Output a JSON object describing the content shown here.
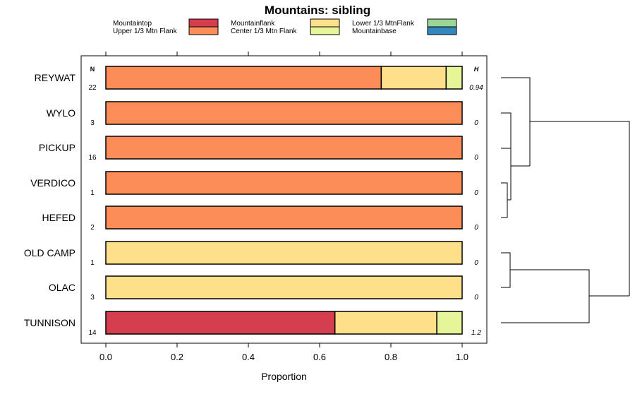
{
  "chart_data": {
    "type": "bar",
    "orientation": "horizontal",
    "stacked": true,
    "title": "Mountains: sibling",
    "xlabel": "Proportion",
    "xlim": [
      0,
      1
    ],
    "xticks": [
      "0.0",
      "0.2",
      "0.4",
      "0.6",
      "0.8",
      "1.0"
    ],
    "n_header": "N",
    "h_header": "H",
    "legend_placement": "top",
    "legend": [
      {
        "name": "Mountaintop",
        "color": "#d53e4f"
      },
      {
        "name": "Upper 1/3 Mtn Flank",
        "color": "#fc8d59"
      },
      {
        "name": "Mountainflank",
        "color": "#fee08b"
      },
      {
        "name": "Center 1/3 Mtn Flank",
        "color": "#e6f598"
      },
      {
        "name": "Lower 1/3 MtnFlank",
        "color": "#99d594"
      },
      {
        "name": "Mountainbase",
        "color": "#3288bd"
      }
    ],
    "categories": [
      "REYWAT",
      "WYLO",
      "PICKUP",
      "VERDICO",
      "HEFED",
      "OLD CAMP",
      "OLAC",
      "TUNNISON"
    ],
    "n": [
      "22",
      "3",
      "16",
      "1",
      "2",
      "1",
      "3",
      "14"
    ],
    "h": [
      "0.94",
      "0",
      "0",
      "0",
      "0",
      "0",
      "0",
      "1.2"
    ],
    "segments": [
      [
        {
          "cls": "Upper 1/3 Mtn Flank",
          "value": 0.773
        },
        {
          "cls": "Mountainflank",
          "value": 0.182
        },
        {
          "cls": "Center 1/3 Mtn Flank",
          "value": 0.045
        }
      ],
      [
        {
          "cls": "Upper 1/3 Mtn Flank",
          "value": 1.0
        }
      ],
      [
        {
          "cls": "Upper 1/3 Mtn Flank",
          "value": 1.0
        }
      ],
      [
        {
          "cls": "Upper 1/3 Mtn Flank",
          "value": 1.0
        }
      ],
      [
        {
          "cls": "Upper 1/3 Mtn Flank",
          "value": 1.0
        }
      ],
      [
        {
          "cls": "Mountainflank",
          "value": 1.0
        }
      ],
      [
        {
          "cls": "Mountainflank",
          "value": 1.0
        }
      ],
      [
        {
          "cls": "Mountaintop",
          "value": 0.643
        },
        {
          "cls": "Mountainflank",
          "value": 0.286
        },
        {
          "cls": "Center 1/3 Mtn Flank",
          "value": 0.071
        }
      ]
    ],
    "dendrogram": true
  }
}
